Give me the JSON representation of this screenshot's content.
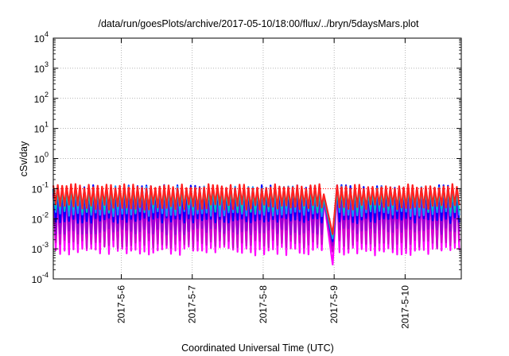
{
  "chart_data": {
    "type": "line",
    "title": "/data/run/goesPlots/archive/2017-05-10/18:00/flux/../bryn/5daysMars.plot",
    "xlabel": "Coordinated Universal Time (UTC)",
    "ylabel": "cSv/day",
    "y_scale": "log",
    "ylim": [
      0.0001,
      10000
    ],
    "xlim": [
      "2017-05-05 01:00",
      "2017-05-10 19:00"
    ],
    "grid": true,
    "legend": "none",
    "y_ticks": [
      {
        "base": "10",
        "exp": "-4",
        "value": 0.0001
      },
      {
        "base": "10",
        "exp": "-3",
        "value": 0.001
      },
      {
        "base": "10",
        "exp": "-2",
        "value": 0.01
      },
      {
        "base": "10",
        "exp": "-1",
        "value": 0.1
      },
      {
        "base": "10",
        "exp": "0",
        "value": 1
      },
      {
        "base": "10",
        "exp": "1",
        "value": 10
      },
      {
        "base": "10",
        "exp": "2",
        "value": 100
      },
      {
        "base": "10",
        "exp": "3",
        "value": 1000
      },
      {
        "base": "10",
        "exp": "4",
        "value": 10000
      }
    ],
    "x_ticks": [
      "2017-5-6",
      "2017-5-7",
      "2017-5-8",
      "2017-5-9",
      "2017-5-10"
    ],
    "reference_line": {
      "value": 0.1,
      "color": "#ff0000",
      "style": "dotted"
    },
    "sawtooth": {
      "period_hours": 1.5,
      "start": "2017-05-05 01:00",
      "end": "2017-05-10 19:00",
      "dropout": {
        "start": "2017-05-08 20:30",
        "end": "2017-05-09 00:00",
        "min_value": 0.00013
      }
    },
    "series": [
      {
        "color": "#ff00ff",
        "peak": 0.09,
        "trough": 0.0008,
        "trough_jitter": [
          0.0006,
          0.0012
        ]
      },
      {
        "color": "#cc00cc",
        "peak": 0.085,
        "trough": 0.0015,
        "trough_jitter": [
          0.001,
          0.002
        ]
      },
      {
        "color": "#9400d3",
        "peak": 0.1,
        "trough": 0.004,
        "trough_jitter": [
          0.003,
          0.005
        ]
      },
      {
        "color": "#0000ff",
        "peak": 0.12,
        "trough": 0.009,
        "trough_jitter": [
          0.007,
          0.011
        ]
      },
      {
        "color": "#1e90ff",
        "peak": 0.11,
        "trough": 0.015,
        "trough_jitter": [
          0.012,
          0.018
        ]
      },
      {
        "color": "#00c0c0",
        "peak": 0.095,
        "trough": 0.02,
        "trough_jitter": [
          0.016,
          0.024
        ]
      },
      {
        "color": "#ff2020",
        "peak": 0.13,
        "trough": 0.025,
        "trough_jitter": [
          0.02,
          0.03
        ]
      }
    ]
  }
}
